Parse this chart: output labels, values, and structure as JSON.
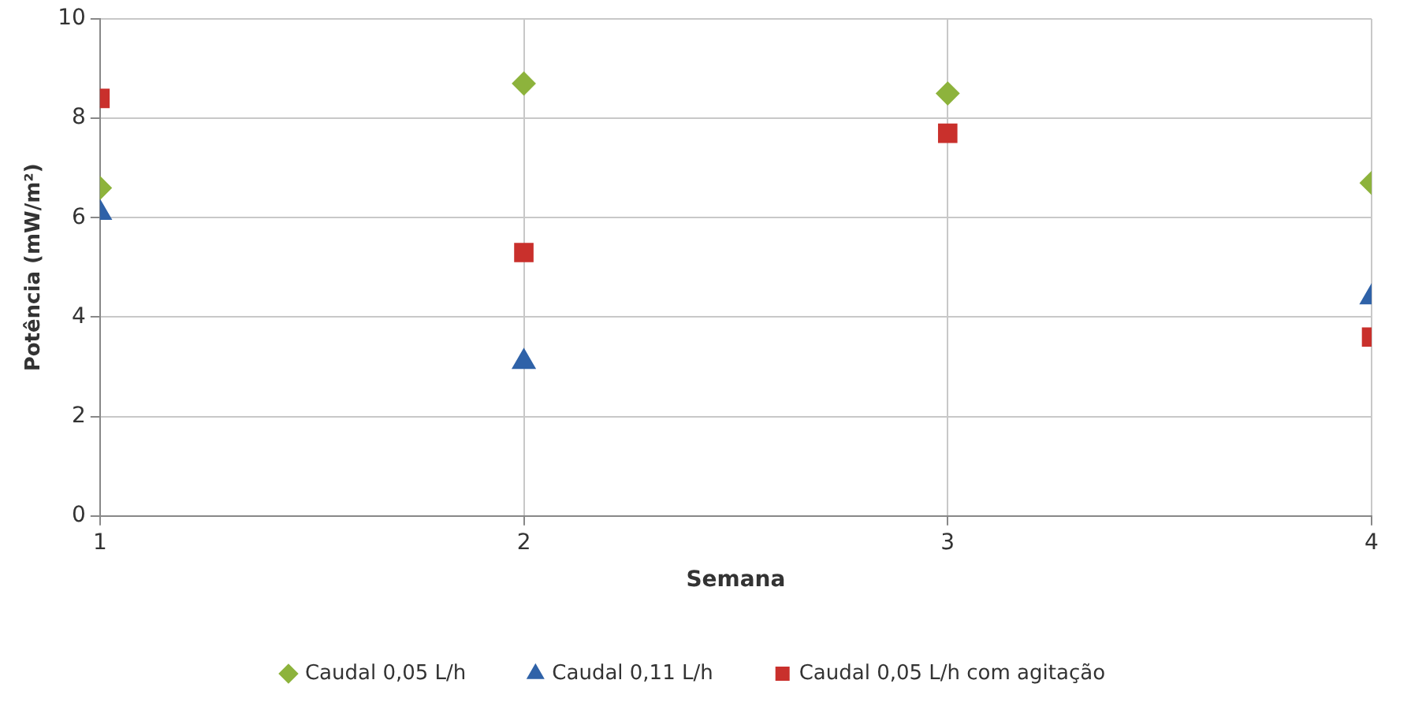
{
  "chart_data": {
    "type": "scatter",
    "xlabel": "Semana",
    "ylabel": "Potência (mW/m²)",
    "x": [
      1,
      2,
      3,
      4
    ],
    "xlim": [
      1,
      4
    ],
    "xticks": [
      1,
      2,
      3,
      4
    ],
    "ylim": [
      0,
      10
    ],
    "yticks": [
      0,
      2,
      4,
      6,
      8,
      10
    ],
    "grid": true,
    "legend": "bottom",
    "series": [
      {
        "name": "Caudal 0,05 L/h",
        "color": "#8db33c",
        "marker": "diamond",
        "values": [
          6.6,
          8.7,
          8.5,
          6.7
        ]
      },
      {
        "name": "Caudal 0,11 L/h",
        "color": "#2f62a8",
        "marker": "triangle",
        "values": [
          6.1,
          3.1,
          null,
          4.4
        ]
      },
      {
        "name": "Caudal 0,05 L/h com agitação",
        "color": "#c9302c",
        "marker": "square",
        "values": [
          8.4,
          5.3,
          7.7,
          3.6
        ]
      }
    ]
  }
}
